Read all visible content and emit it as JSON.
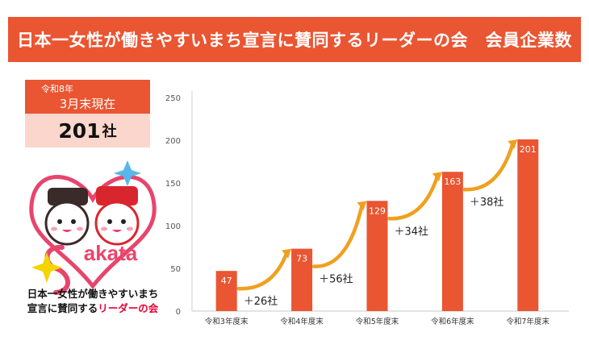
{
  "header": {
    "title": "日本一女性が働きやすいまち宣言に賛同するリーダーの会　会員企業数"
  },
  "summary": {
    "era": "令和8年",
    "date": "3月末現在",
    "count": "201",
    "unit": "社"
  },
  "logo": {
    "brand_text": "akata",
    "line1": "日本一女性が働きやすいまち",
    "line2_prefix": "宣言に賛同する",
    "line2_accent": "リーダーの会"
  },
  "colors": {
    "accent": "#ea5532",
    "light": "#fbd6cc",
    "arrow": "#f0a020",
    "heart": "#e8456c",
    "star_blue": "#56b8e8",
    "star_yellow": "#f5d400"
  },
  "chart_data": {
    "type": "bar",
    "categories": [
      "令和3年度末",
      "令和4年度末",
      "令和5年度末",
      "令和6年度末",
      "令和7年度末"
    ],
    "values": [
      47,
      73,
      129,
      163,
      201
    ],
    "increments": [
      "＋26社",
      "＋56社",
      "＋34社",
      "＋38社"
    ],
    "ylim": [
      0,
      250
    ],
    "yticks": [
      0,
      50,
      100,
      150,
      200,
      250
    ],
    "title": "",
    "xlabel": "",
    "ylabel": ""
  }
}
